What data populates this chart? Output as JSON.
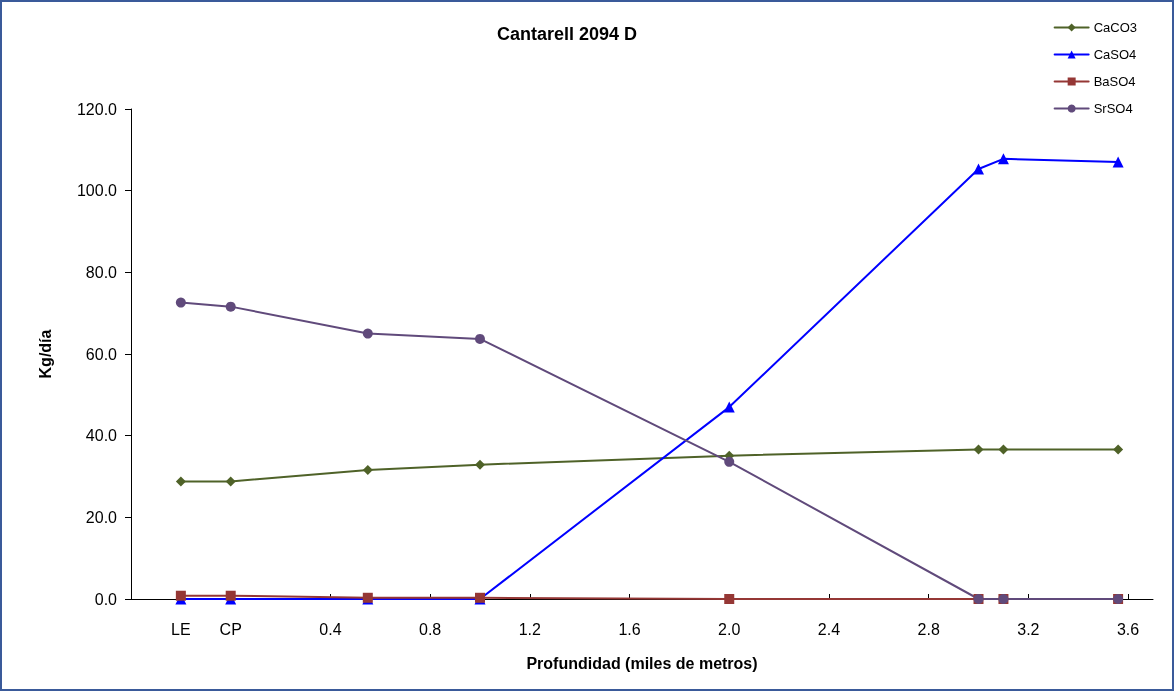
{
  "chart_data": {
    "type": "line",
    "title": "Cantarell 2094 D",
    "xlabel": "Profundidad (miles de metros)",
    "ylabel": "Kg/día",
    "x": [
      -0.2,
      0.0,
      0.55,
      1.0,
      2.0,
      3.0,
      3.1,
      3.56
    ],
    "xlim": [
      -0.4,
      3.7
    ],
    "xticks": [
      {
        "value": -0.2,
        "label": "LE"
      },
      {
        "value": 0,
        "label": "CP"
      },
      {
        "value": 0.4,
        "label": "0.4"
      },
      {
        "value": 0.8,
        "label": "0.8"
      },
      {
        "value": 1.2,
        "label": "1.2"
      },
      {
        "value": 1.6,
        "label": "1.6"
      },
      {
        "value": 2.0,
        "label": "2.0"
      },
      {
        "value": 2.4,
        "label": "2.4"
      },
      {
        "value": 2.8,
        "label": "2.8"
      },
      {
        "value": 3.2,
        "label": "3.2"
      },
      {
        "value": 3.6,
        "label": "3.6"
      }
    ],
    "ylim": [
      0,
      120
    ],
    "yticks": [
      {
        "value": 0,
        "label": "0.0"
      },
      {
        "value": 20,
        "label": "20.0"
      },
      {
        "value": 40,
        "label": "40.0"
      },
      {
        "value": 60,
        "label": "60.0"
      },
      {
        "value": 80,
        "label": "80.0"
      },
      {
        "value": 100,
        "label": "100.0"
      },
      {
        "value": 120,
        "label": "120.0"
      }
    ],
    "grid": false,
    "legend": "top right",
    "series": [
      {
        "name": "CaCO3",
        "color": "#4f6228",
        "marker": "diamond",
        "values": [
          28.8,
          28.8,
          31.6,
          32.9,
          35.1,
          36.6,
          36.6,
          36.6
        ]
      },
      {
        "name": "CaSO4",
        "color": "#0000ff",
        "marker": "triangle",
        "values": [
          0,
          0,
          0,
          0,
          47.0,
          105.3,
          107.8,
          107.0
        ]
      },
      {
        "name": "BaSO4",
        "color": "#953735",
        "marker": "square",
        "values": [
          0.8,
          0.8,
          0.3,
          0.3,
          0,
          0,
          0,
          0
        ]
      },
      {
        "name": "SrSO4",
        "color": "#604a7b",
        "marker": "circle",
        "values": [
          72.6,
          71.6,
          65.0,
          63.7,
          33.6,
          0,
          0,
          0
        ]
      }
    ]
  }
}
